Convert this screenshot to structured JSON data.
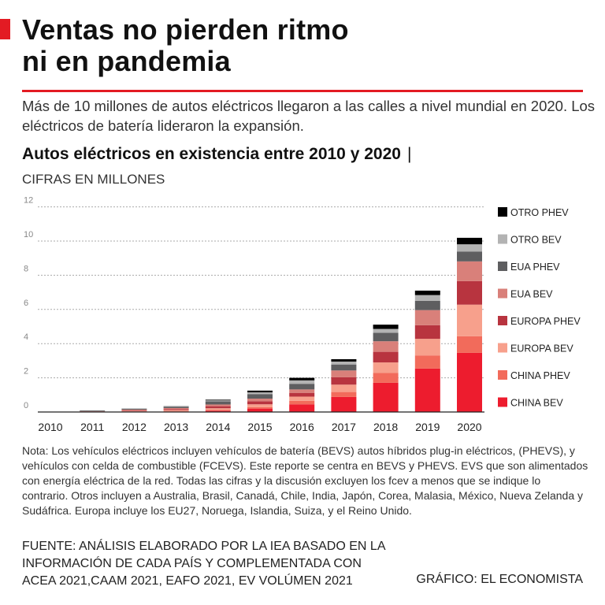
{
  "header": {
    "title_line1": "Ventas no pierden ritmo",
    "title_line2": "ni en pandemia",
    "subtitle": "Más de 10 millones de autos eléctricos llegaron a las calles a nivel mundial en 2020. Los eléctricos de batería lideraron la expansión."
  },
  "chart_header": {
    "title": "Autos eléctricos en existencia entre 2010 y 2020",
    "separator": "|",
    "units": "CIFRAS EN MILLONES"
  },
  "chart_data": {
    "type": "bar",
    "stacked": true,
    "title": "Autos eléctricos en existencia entre 2010 y 2020",
    "ylabel": "CIFRAS EN MILLONES",
    "ylim": [
      0,
      12
    ],
    "yticks": [
      0,
      2,
      4,
      6,
      8,
      10,
      12
    ],
    "grid": true,
    "legend_position": "right",
    "categories": [
      "2010",
      "2011",
      "2012",
      "2013",
      "2014",
      "2015",
      "2016",
      "2017",
      "2018",
      "2019",
      "2020"
    ],
    "series": [
      {
        "name": "CHINA BEV",
        "color": "#ED1C2E",
        "values": [
          0,
          0.01,
          0.02,
          0.03,
          0.08,
          0.2,
          0.45,
          0.88,
          1.71,
          2.54,
          3.46
        ]
      },
      {
        "name": "CHINA PHEV",
        "color": "#F26B5B",
        "values": [
          0,
          0,
          0.01,
          0.02,
          0.04,
          0.08,
          0.2,
          0.29,
          0.57,
          0.77,
          0.97
        ]
      },
      {
        "name": "EUROPA BEV",
        "color": "#F7A08C",
        "values": [
          0,
          0.01,
          0.03,
          0.06,
          0.1,
          0.17,
          0.25,
          0.43,
          0.62,
          0.97,
          1.85
        ]
      },
      {
        "name": "EUROPA PHEV",
        "color": "#B8343F",
        "values": [
          0,
          0.01,
          0.03,
          0.06,
          0.12,
          0.18,
          0.22,
          0.43,
          0.62,
          0.8,
          1.38
        ]
      },
      {
        "name": "EUA BEV",
        "color": "#D9807A",
        "values": [
          0.005,
          0.02,
          0.05,
          0.06,
          0.1,
          0.15,
          0.2,
          0.4,
          0.62,
          0.88,
          1.15
        ]
      },
      {
        "name": "EUA PHEV",
        "color": "#5E5E60",
        "values": [
          0.005,
          0.04,
          0.05,
          0.08,
          0.18,
          0.27,
          0.33,
          0.35,
          0.49,
          0.54,
          0.58
        ]
      },
      {
        "name": "OTRO BEV",
        "color": "#B3B3B3",
        "values": [
          0,
          0,
          0.005,
          0.02,
          0.06,
          0.1,
          0.2,
          0.17,
          0.23,
          0.34,
          0.42
        ]
      },
      {
        "name": "OTRO PHEV",
        "color": "#000000",
        "values": [
          0,
          0,
          0.005,
          0.01,
          0.04,
          0.1,
          0.15,
          0.14,
          0.25,
          0.26,
          0.38
        ]
      }
    ]
  },
  "note": "Nota: Los vehículos eléctricos incluyen vehículos de batería (BEVS) autos híbridos plug-in eléctricos, (PHEVS), y vehículos con celda de combustible (FCEVS). Este reporte se centra en BEVS y PHEVS. EVS que son alimentados con energía eléctrica de la red. Todas las cifras y la discusión excluyen los fcev a menos que se indique lo contrario. Otros incluyen a Australia, Brasil, Canadá, Chile, India, Japón, Corea, Malasia, México, Nueva Zelanda y Sudáfrica. Europa incluye los EU27, Noruega, Islandia, Suiza, y el Reino Unido.",
  "footer": {
    "source": "FUENTE: ANÁLISIS ELABORADO POR LA IEA BASADO EN LA INFORMACIÓN DE CADA PAÍS Y COMPLEMENTADA CON ACEA 2021,CAAM 2021, EAFO 2021, EV VOLÚMEN 2021",
    "credit": "GRÁFICO: EL ECONOMISTA"
  }
}
